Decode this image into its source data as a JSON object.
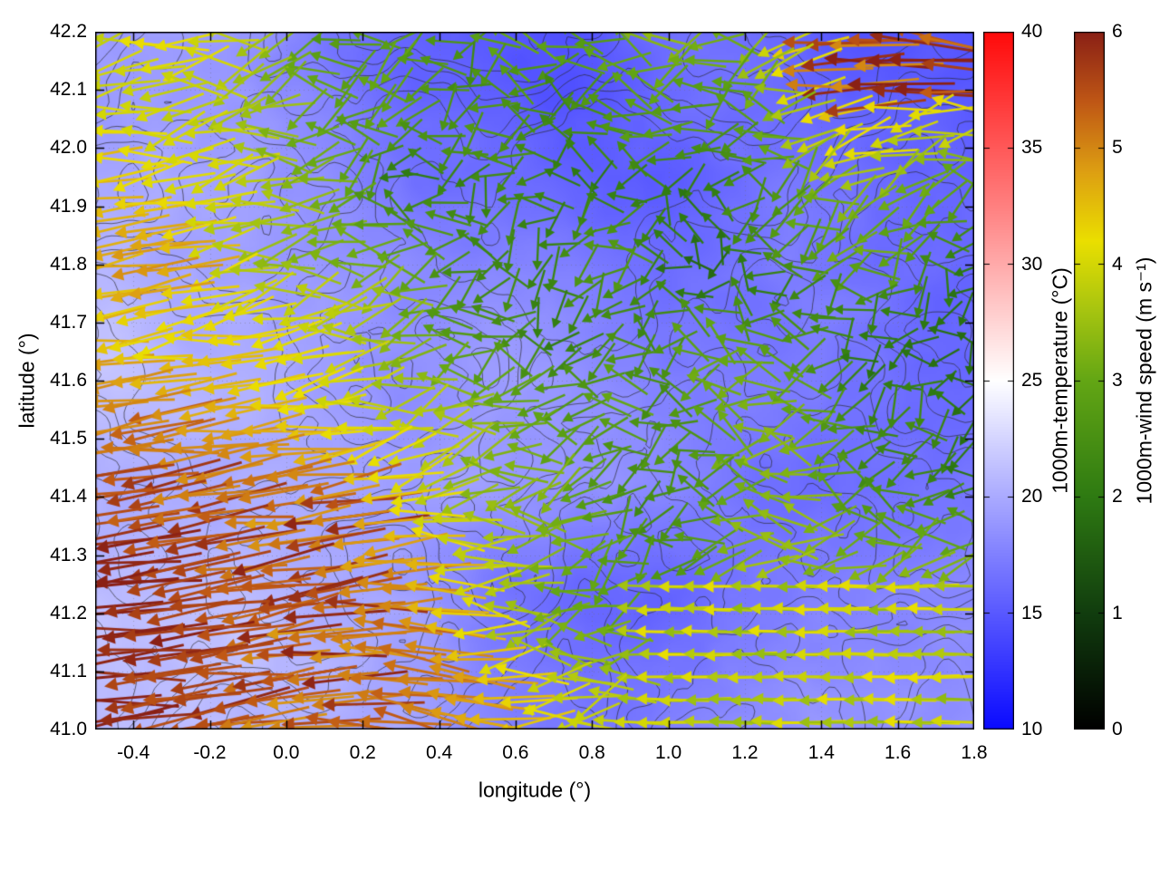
{
  "figure": {
    "background": "#ffffff",
    "axes": {
      "xlabel": "longitude (°)",
      "ylabel": "latitude (°)",
      "xlim": [
        -0.5,
        1.8
      ],
      "ylim": [
        41.0,
        42.2
      ],
      "xtick_values": [
        -0.4,
        -0.2,
        0.0,
        0.2,
        0.4,
        0.6,
        0.8,
        1.0,
        1.2,
        1.4,
        1.6,
        1.8
      ],
      "xtick_labels": [
        "-0.4",
        "-0.2",
        "0.0",
        "0.2",
        "0.4",
        "0.6",
        "0.8",
        "1.0",
        "1.2",
        "1.4",
        "1.6",
        "1.8"
      ],
      "ytick_values": [
        41.0,
        41.1,
        41.2,
        41.3,
        41.4,
        41.5,
        41.6,
        41.7,
        41.8,
        41.9,
        42.0,
        42.1,
        42.2
      ],
      "ytick_labels": [
        "41.0",
        "41.1",
        "41.2",
        "41.3",
        "41.4",
        "41.5",
        "41.6",
        "41.7",
        "41.8",
        "41.9",
        "42.0",
        "42.1",
        "42.2"
      ],
      "grid_dotted": true,
      "grid_color": "#6e6e6e"
    },
    "colorbars": [
      {
        "id": "temperature",
        "title": "1000m-temperature (°C)",
        "min": 10,
        "max": 40,
        "tick_values": [
          40,
          35,
          30,
          25,
          20,
          15,
          10
        ],
        "tick_labels": [
          "40",
          "35",
          "30",
          "25",
          "20",
          "15",
          "10"
        ],
        "stops": [
          [
            10,
            "#0a0aff"
          ],
          [
            17.5,
            "#8080ff"
          ],
          [
            25,
            "#ffffff"
          ],
          [
            32.5,
            "#ff8080"
          ],
          [
            40,
            "#ff0a0a"
          ]
        ]
      },
      {
        "id": "wind-speed",
        "title": "1000m-wind speed (m s⁻¹)",
        "min": 0,
        "max": 6,
        "tick_values": [
          6,
          5,
          4,
          3,
          2,
          1,
          0
        ],
        "tick_labels": [
          "6",
          "5",
          "4",
          "3",
          "2",
          "1",
          "0"
        ],
        "stops": [
          [
            0,
            "#000000"
          ],
          [
            1,
            "#113d0e"
          ],
          [
            2,
            "#2e7a12"
          ],
          [
            3,
            "#63a614"
          ],
          [
            3.6,
            "#a6c410"
          ],
          [
            4.2,
            "#eadf00"
          ],
          [
            4.8,
            "#dd9f12"
          ],
          [
            5.4,
            "#bf5715"
          ],
          [
            6,
            "#8a2015"
          ]
        ]
      }
    ]
  },
  "chart_data": {
    "type": "heatmap",
    "subtype": "temperature field with wind vector overlay and terrain contour lines",
    "title": "",
    "xlabel": "longitude (°)",
    "ylabel": "latitude (°)",
    "xlim": [
      -0.5,
      1.8
    ],
    "ylim": [
      41.0,
      42.2
    ],
    "grid_lon": [
      -0.45,
      -0.25,
      -0.05,
      0.15,
      0.35,
      0.55,
      0.75,
      0.95,
      1.15,
      1.35,
      1.55,
      1.75
    ],
    "grid_lat": [
      42.125,
      41.95,
      41.775,
      41.6,
      41.425,
      41.25,
      41.075
    ],
    "temperature_C": {
      "units": "°C",
      "colorbar_range": [
        10,
        40
      ],
      "values": [
        [
          19.5,
          19.5,
          19.0,
          17.5,
          16.0,
          15.5,
          15.0,
          16.0,
          16.5,
          16.0,
          15.0,
          14.5
        ],
        [
          20.0,
          20.0,
          19.5,
          18.5,
          17.0,
          16.5,
          15.5,
          15.5,
          16.5,
          16.5,
          16.0,
          15.5
        ],
        [
          20.5,
          20.0,
          19.5,
          19.0,
          18.5,
          18.0,
          17.5,
          17.0,
          17.0,
          17.0,
          16.5,
          16.0
        ],
        [
          21.0,
          20.5,
          20.0,
          19.5,
          19.0,
          19.0,
          18.5,
          18.0,
          17.5,
          17.0,
          16.5,
          16.5
        ],
        [
          20.5,
          21.0,
          20.5,
          20.0,
          19.5,
          19.0,
          18.5,
          18.0,
          17.5,
          17.0,
          17.0,
          17.0
        ],
        [
          21.0,
          21.0,
          20.5,
          20.0,
          19.0,
          17.5,
          16.5,
          16.0,
          17.0,
          17.5,
          18.0,
          18.0
        ],
        [
          21.0,
          21.0,
          20.5,
          20.0,
          19.5,
          18.0,
          17.5,
          17.0,
          18.0,
          18.5,
          18.5,
          18.5
        ]
      ]
    },
    "wind_speed_ms": {
      "units": "m s⁻¹",
      "colorbar_range": [
        0,
        6
      ],
      "values": [
        [
          4.0,
          4.0,
          3.5,
          3.0,
          2.5,
          3.0,
          2.5,
          3.0,
          3.0,
          4.0,
          5.0,
          5.5
        ],
        [
          4.5,
          4.0,
          3.5,
          3.0,
          2.5,
          2.5,
          2.0,
          2.5,
          2.5,
          3.0,
          3.5,
          3.0
        ],
        [
          4.5,
          4.5,
          4.0,
          3.5,
          3.0,
          2.5,
          2.5,
          2.0,
          2.0,
          2.5,
          2.5,
          2.0
        ],
        [
          5.0,
          4.5,
          4.5,
          4.0,
          3.5,
          3.0,
          2.5,
          2.5,
          3.5,
          3.0,
          2.0,
          2.0
        ],
        [
          5.5,
          5.0,
          5.0,
          4.5,
          4.0,
          3.5,
          3.0,
          2.5,
          3.0,
          3.5,
          2.5,
          2.0
        ],
        [
          6.0,
          5.5,
          5.0,
          4.5,
          5.0,
          4.0,
          3.0,
          2.5,
          3.5,
          3.5,
          3.5,
          3.5
        ],
        [
          6.0,
          5.5,
          5.0,
          4.5,
          5.5,
          5.0,
          4.0,
          3.5,
          3.5,
          4.0,
          3.5,
          3.5
        ]
      ]
    },
    "wind_direction_deg_pointing": {
      "note": "direction arrows point toward, 180 = west, 90 = north",
      "values": [
        [
          185,
          185,
          190,
          200,
          210,
          190,
          170,
          180,
          200,
          185,
          180,
          175
        ],
        [
          185,
          190,
          185,
          195,
          200,
          210,
          180,
          160,
          190,
          200,
          210,
          190
        ],
        [
          190,
          185,
          190,
          190,
          185,
          200,
          220,
          180,
          150,
          190,
          210,
          200
        ],
        [
          190,
          190,
          185,
          190,
          195,
          190,
          180,
          200,
          170,
          190,
          230,
          210
        ],
        [
          188,
          190,
          185,
          190,
          195,
          185,
          200,
          210,
          175,
          165,
          190,
          220
        ],
        [
          185,
          188,
          190,
          185,
          175,
          180,
          195,
          210,
          180,
          180,
          180,
          180
        ],
        [
          185,
          186,
          188,
          182,
          170,
          175,
          190,
          200,
          180,
          180,
          180,
          180
        ]
      ]
    },
    "contours": {
      "color": "#2d2d2d",
      "approx_levels": 7
    },
    "vectors": {
      "approx_grid_spacing_deg": 0.06,
      "length_scale": "proportional to wind speed"
    },
    "legend_position": "none",
    "grid_on": true
  }
}
